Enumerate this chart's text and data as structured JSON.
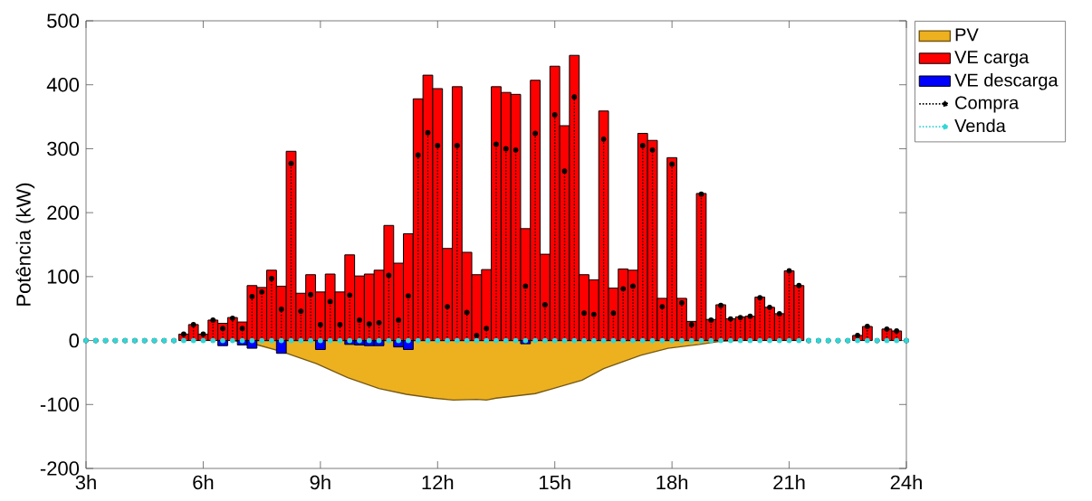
{
  "chart_data": {
    "type": "bar",
    "ylabel": "Potência (kW)",
    "xlim": [
      3,
      24
    ],
    "ylim": [
      -200,
      500
    ],
    "xticks": [
      {
        "value": 3,
        "label": "3h"
      },
      {
        "value": 6,
        "label": "6h"
      },
      {
        "value": 9,
        "label": "9h"
      },
      {
        "value": 12,
        "label": "12h"
      },
      {
        "value": 15,
        "label": "15h"
      },
      {
        "value": 18,
        "label": "18h"
      },
      {
        "value": 21,
        "label": "21h"
      },
      {
        "value": 24,
        "label": "24h"
      }
    ],
    "yticks": [
      -200,
      -100,
      0,
      100,
      200,
      300,
      400,
      500
    ],
    "legend": "top right",
    "x": [
      3,
      3.25,
      3.5,
      3.75,
      4,
      4.25,
      4.5,
      4.75,
      5,
      5.25,
      5.5,
      5.75,
      6,
      6.25,
      6.5,
      6.75,
      7,
      7.25,
      7.5,
      7.75,
      8,
      8.25,
      8.5,
      8.75,
      9,
      9.25,
      9.5,
      9.75,
      10,
      10.25,
      10.5,
      10.75,
      11,
      11.25,
      11.5,
      11.75,
      12,
      12.25,
      12.5,
      12.75,
      13,
      13.25,
      13.5,
      13.75,
      14,
      14.25,
      14.5,
      14.75,
      15,
      15.25,
      15.5,
      15.75,
      16,
      16.25,
      16.5,
      16.75,
      17,
      17.25,
      17.5,
      17.75,
      18,
      18.25,
      18.5,
      18.75,
      19,
      19.25,
      19.5,
      19.75,
      20,
      20.25,
      20.5,
      20.75,
      21,
      21.25,
      21.5,
      21.75,
      22,
      22.25,
      22.5,
      22.75,
      23,
      23.25,
      23.5,
      23.75,
      24
    ],
    "series": [
      {
        "name": "PV",
        "type": "area",
        "color": "#edb120",
        "x": [
          6.75,
          7.4,
          8,
          8.9,
          9.7,
          10.5,
          11.2,
          11.9,
          12.4,
          13,
          13.25,
          13.5,
          14.5,
          14.9,
          15.7,
          16.25,
          17.2,
          17.9,
          18.7,
          19.25,
          19.7
        ],
        "values": [
          0,
          -7,
          -17,
          -36,
          -58,
          -75,
          -84,
          -90,
          -93,
          -92,
          -93,
          -90,
          -83,
          -76,
          -62,
          -44,
          -23,
          -12,
          -6,
          -1,
          0
        ]
      },
      {
        "name": "VE carga",
        "color": "#ff0000",
        "x": [
          5.5,
          5.75,
          6,
          6.25,
          6.5,
          6.75,
          7,
          7.25,
          7.5,
          7.75,
          8,
          8.25,
          8.5,
          8.75,
          9,
          9.25,
          9.5,
          9.75,
          10,
          10.25,
          10.5,
          10.75,
          11,
          11.25,
          11.5,
          11.75,
          12,
          12.25,
          12.5,
          12.75,
          13,
          13.25,
          13.5,
          13.75,
          14,
          14.25,
          14.5,
          14.75,
          15,
          15.25,
          15.5,
          15.75,
          16,
          16.25,
          16.5,
          16.75,
          17,
          17.25,
          17.5,
          17.75,
          18,
          18.25,
          18.5,
          18.75,
          19,
          19.25,
          19.5,
          19.75,
          20,
          20.25,
          20.5,
          20.75,
          21,
          21.25,
          21.5,
          21.75,
          22,
          22.25,
          22.5,
          22.75,
          23,
          23.25,
          23.5,
          23.75
        ],
        "values": [
          10,
          25,
          10,
          32,
          27,
          36,
          29,
          86,
          83,
          110,
          85,
          296,
          74,
          103,
          76,
          104,
          76,
          134,
          101,
          104,
          110,
          180,
          121,
          167,
          378,
          415,
          394,
          144,
          397,
          138,
          103,
          111,
          397,
          388,
          385,
          175,
          407,
          135,
          429,
          336,
          446,
          103,
          95,
          359,
          82,
          112,
          110,
          324,
          313,
          66,
          286,
          66,
          30,
          230,
          33,
          56,
          34,
          37,
          38,
          68,
          52,
          42,
          109,
          86,
          null,
          null,
          null,
          null,
          null,
          8,
          22,
          null,
          18,
          15
        ]
      },
      {
        "name": "VE descarga",
        "color": "#0000ff",
        "x": [
          6.5,
          7,
          7.25,
          8,
          9,
          9.75,
          10,
          10.25,
          10.5,
          11,
          11.25,
          14.25
        ],
        "values": [
          -8,
          -7,
          -12,
          -20,
          -14,
          -6,
          -7,
          -8,
          -8,
          -10,
          -14,
          -5
        ]
      },
      {
        "name": "Compra",
        "type": "lollipop",
        "color": "#000000",
        "line_style": "dotted",
        "marker": "circle",
        "values": [
          0,
          0,
          0,
          0,
          0,
          0,
          0,
          0,
          0,
          0,
          10,
          25,
          10,
          32,
          19,
          35,
          19,
          69,
          76,
          97,
          49,
          277,
          46,
          72,
          25,
          61,
          25,
          71,
          32,
          26,
          28,
          102,
          32,
          70,
          290,
          325,
          305,
          53,
          305,
          44,
          8,
          19,
          307,
          300,
          298,
          85,
          324,
          56,
          353,
          265,
          381,
          43,
          41,
          315,
          43,
          81,
          85,
          305,
          298,
          53,
          276,
          59,
          25,
          229,
          32,
          55,
          34,
          36,
          38,
          67,
          52,
          42,
          109,
          86,
          0,
          0,
          0,
          0,
          0,
          8,
          22,
          0,
          18,
          15,
          0
        ]
      },
      {
        "name": "Venda",
        "type": "lollipop",
        "color": "#33d6d6",
        "line_style": "dotted",
        "marker": "circle",
        "values": [
          0,
          0,
          0,
          0,
          0,
          0,
          0,
          0,
          0,
          0,
          0,
          0,
          0,
          0,
          0,
          0,
          0,
          0,
          0,
          0,
          0,
          0,
          0,
          0,
          0,
          0,
          0,
          0,
          0,
          0,
          0,
          0,
          0,
          0,
          0,
          0,
          0,
          0,
          0,
          0,
          0,
          0,
          0,
          0,
          0,
          0,
          0,
          0,
          0,
          0,
          0,
          0,
          0,
          0,
          0,
          0,
          0,
          0,
          0,
          0,
          0,
          0,
          0,
          0,
          0,
          0,
          0,
          0,
          0,
          0,
          0,
          0,
          0,
          0,
          0,
          0,
          0,
          0,
          0,
          0,
          0,
          0,
          0,
          0,
          0
        ]
      }
    ]
  }
}
